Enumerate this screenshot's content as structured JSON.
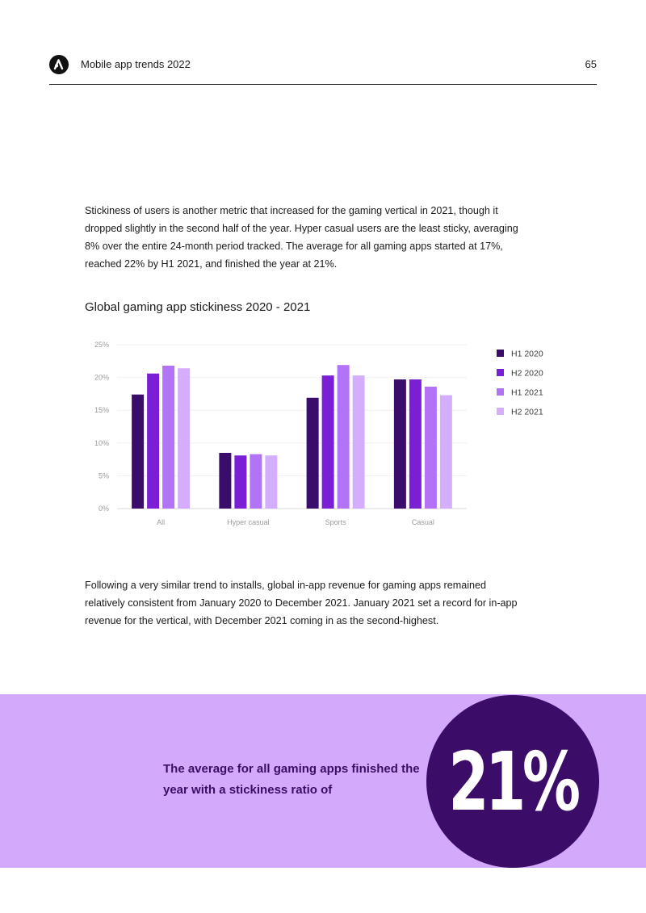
{
  "header": {
    "logo_icon": "adjust-logo-icon",
    "title": "Mobile app trends 2022",
    "page_number": "65"
  },
  "intro_paragraph": "Stickiness of users is another metric that increased for the gaming vertical in 2021, though it dropped slightly in the second half of the year. Hyper casual users are the least sticky, averaging 8% over the entire 24-month period tracked. The average for all gaming apps started at 17%, reached 22% by H1 2021, and finished the year at 21%.",
  "chart_heading": "Global gaming app stickiness 2020 - 2021",
  "chart_data": {
    "type": "bar",
    "title": "Global gaming app stickiness 2020 - 2021",
    "categories": [
      "All",
      "Hyper casual",
      "Sports",
      "Casual"
    ],
    "series": [
      {
        "name": "H1 2020",
        "color": "#3a0d6a",
        "values": [
          17.4,
          8.5,
          16.9,
          19.7
        ]
      },
      {
        "name": "H2 2020",
        "color": "#7b1fd6",
        "values": [
          20.6,
          8.1,
          20.3,
          19.7
        ]
      },
      {
        "name": "H1 2021",
        "color": "#b273f7",
        "values": [
          21.8,
          8.3,
          21.9,
          18.6
        ]
      },
      {
        "name": "H2 2021",
        "color": "#d4aefc",
        "values": [
          21.4,
          8.1,
          20.3,
          17.3
        ]
      }
    ],
    "y_ticks": [
      "0%",
      "5%",
      "10%",
      "15%",
      "20%",
      "25%"
    ],
    "ylim": [
      0,
      25
    ],
    "grid": true,
    "legend_position": "right"
  },
  "second_paragraph": "Following a very similar trend to installs, global in-app revenue for gaming apps remained relatively consistent from January 2020 to December 2021. January 2021 set a record for in-app revenue for the vertical, with December 2021 coming in as the second-highest.",
  "callout": {
    "text": "The average for all gaming apps finished the year with a stickiness ratio of",
    "value": "21%",
    "band_color": "#d3aafb",
    "circle_color": "#3b0c68"
  }
}
